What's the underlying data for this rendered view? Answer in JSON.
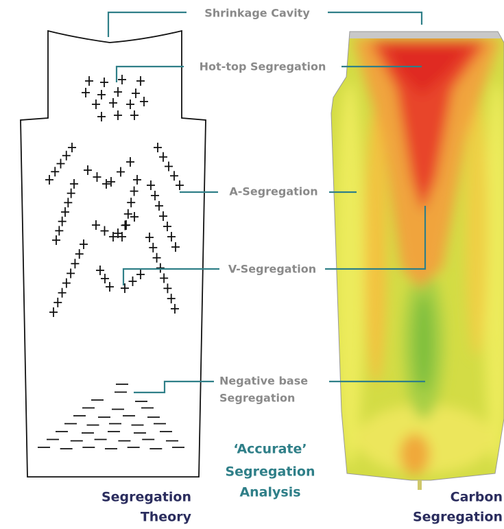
{
  "callouts": [
    {
      "text": [
        "Shrinkage Cavity"
      ]
    },
    {
      "text": [
        "Hot-top Segregation"
      ]
    },
    {
      "text": [
        "A-Segregation"
      ]
    },
    {
      "text": [
        "V-Segregation"
      ]
    },
    {
      "text": [
        "Negative base",
        "Segregation"
      ]
    }
  ],
  "center_caption": [
    "‘Accurate’",
    "Segregation",
    "Analysis"
  ],
  "left_caption": [
    "Segregation",
    "Theory"
  ],
  "right_caption": [
    "Carbon",
    "Segregation"
  ]
}
